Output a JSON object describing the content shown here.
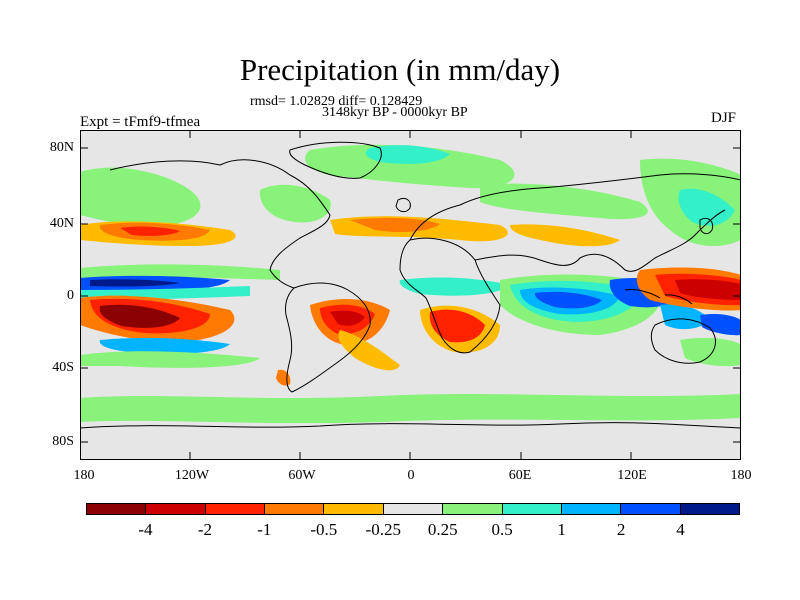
{
  "header": {
    "title": "Precipitation (in mm/day)",
    "stats": "rmsd= 1.02829 diff= 0.128429",
    "period": "3148kyr BP - 0000kyr BP",
    "experiment": "Expt = tFmf9-tfmea",
    "season": "DJF"
  },
  "axes": {
    "y_labels": [
      "80N",
      "40N",
      "0",
      "40S",
      "80S"
    ],
    "x_labels": [
      "180",
      "120W",
      "60W",
      "0",
      "60E",
      "120E",
      "180"
    ]
  },
  "colorbar": {
    "colors": [
      "#8b0000",
      "#cc0000",
      "#ff2200",
      "#ff7a00",
      "#ffbb00",
      "#e6e6e6",
      "#88f27a",
      "#33f0c8",
      "#00b4ff",
      "#0050ff",
      "#001a8c"
    ],
    "labels": [
      "-4",
      "-2",
      "-1",
      "-0.5",
      "-0.25",
      "0.25",
      "0.5",
      "1",
      "2",
      "4"
    ]
  }
}
